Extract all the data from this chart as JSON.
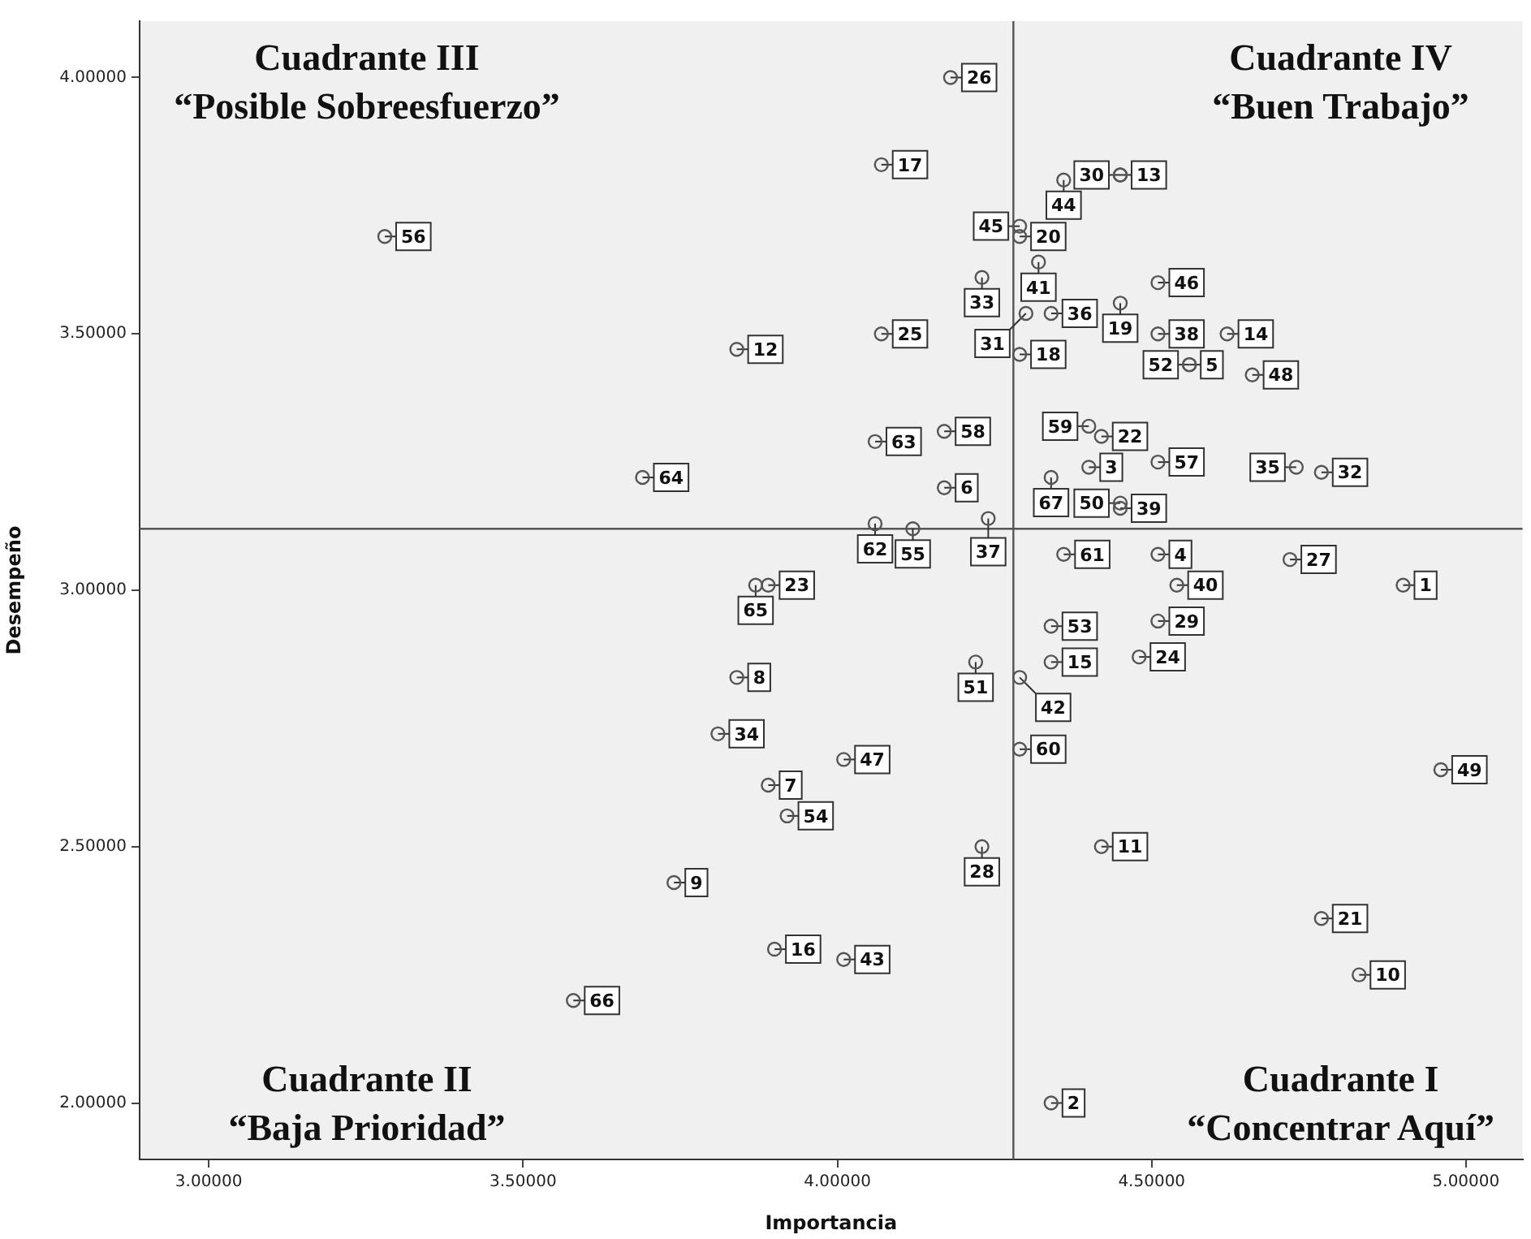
{
  "chart_data": {
    "type": "scatter",
    "xlabel": "Importancia",
    "ylabel": "Desempeño",
    "xlim": [
      2.89,
      5.09
    ],
    "ylim": [
      1.89,
      4.11
    ],
    "xticks": [
      {
        "value": 3,
        "label": "3.00000"
      },
      {
        "value": 3.5,
        "label": "3.50000"
      },
      {
        "value": 4,
        "label": "4.00000"
      },
      {
        "value": 4.5,
        "label": "4.50000"
      },
      {
        "value": 5,
        "label": "5.00000"
      }
    ],
    "yticks": [
      {
        "value": 2,
        "label": "2.00000"
      },
      {
        "value": 2.5,
        "label": "2.50000"
      },
      {
        "value": 3,
        "label": "3.00000"
      },
      {
        "value": 3.5,
        "label": "3.50000"
      },
      {
        "value": 4,
        "label": "4.00000"
      }
    ],
    "grid": false,
    "legend": false,
    "marker": "circle",
    "series": [
      {
        "color": "#555555",
        "x": [
          4.9,
          4.34,
          4.4,
          4.51,
          4.56,
          4.17,
          3.89,
          3.84,
          3.74,
          4.83,
          4.42,
          3.84,
          4.45,
          4.62,
          4.34,
          3.9,
          4.07,
          4.29,
          4.45,
          4.29,
          4.77,
          4.42,
          3.89,
          4.48,
          4.07,
          4.18,
          4.72,
          4.23,
          4.51,
          4.45,
          4.3,
          4.77,
          4.23,
          3.81,
          4.73,
          4.34,
          4.24,
          4.51,
          4.45,
          4.54,
          4.32,
          4.29,
          4.01,
          4.36,
          4.29,
          4.51,
          4.01,
          4.66,
          4.96,
          4.45,
          4.22,
          4.56,
          4.34,
          3.92,
          4.12,
          3.28,
          4.51,
          4.17,
          4.4,
          4.29,
          4.36,
          4.06,
          4.06,
          3.69,
          3.87,
          3.58,
          4.34
        ],
        "values": [
          3.01,
          2.0,
          3.24,
          3.07,
          3.44,
          3.2,
          2.62,
          2.83,
          2.43,
          2.25,
          2.5,
          3.47,
          3.81,
          3.5,
          2.86,
          2.3,
          3.83,
          3.46,
          3.56,
          3.69,
          2.36,
          3.3,
          3.01,
          2.87,
          3.5,
          4.0,
          3.06,
          2.5,
          2.94,
          3.81,
          3.54,
          3.23,
          3.61,
          2.72,
          3.24,
          3.54,
          3.14,
          3.5,
          3.16,
          3.01,
          3.64,
          2.83,
          2.28,
          3.8,
          3.71,
          3.6,
          2.67,
          3.42,
          2.65,
          3.17,
          2.86,
          3.44,
          2.93,
          2.56,
          3.12,
          3.69,
          3.25,
          3.31,
          3.32,
          2.69,
          3.07,
          3.13,
          3.29,
          3.22,
          3.01,
          2.2,
          3.22
        ]
      }
    ],
    "ref_lines": [
      {
        "axis": "x",
        "value": 4.28,
        "color": "#555555"
      },
      {
        "axis": "y",
        "value": 3.12,
        "color": "#555555"
      }
    ],
    "annotations": [
      "Cuadrante III\n“Posible Sobreesfuerzo”",
      "Cuadrante IV\n“Buen Trabajo”",
      "Cuadrante II\n“Baja Prioridad”",
      "Cuadrante I\n“Concentrar Aquí”",
      {
        "text": "1",
        "x": 4.9,
        "y": 3.01
      },
      {
        "text": "2",
        "x": 4.34,
        "y": 2.0
      },
      {
        "text": "3",
        "x": 4.4,
        "y": 3.24
      },
      {
        "text": "4",
        "x": 4.51,
        "y": 3.07
      },
      {
        "text": "5",
        "x": 4.56,
        "y": 3.44
      },
      {
        "text": "6",
        "x": 4.17,
        "y": 3.2
      },
      {
        "text": "7",
        "x": 3.89,
        "y": 2.62
      },
      {
        "text": "8",
        "x": 3.84,
        "y": 2.83
      },
      {
        "text": "9",
        "x": 3.74,
        "y": 2.43
      },
      {
        "text": "10",
        "x": 4.83,
        "y": 2.25
      },
      {
        "text": "11",
        "x": 4.42,
        "y": 2.5
      },
      {
        "text": "12",
        "x": 3.84,
        "y": 3.47
      },
      {
        "text": "13",
        "x": 4.45,
        "y": 3.81
      },
      {
        "text": "14",
        "x": 4.62,
        "y": 3.5
      },
      {
        "text": "15",
        "x": 4.34,
        "y": 2.86
      },
      {
        "text": "16",
        "x": 3.9,
        "y": 2.3
      },
      {
        "text": "17",
        "x": 4.07,
        "y": 3.83
      },
      {
        "text": "18",
        "x": 4.29,
        "y": 3.46
      },
      {
        "text": "19",
        "x": 4.45,
        "y": 3.56
      },
      {
        "text": "20",
        "x": 4.29,
        "y": 3.69
      },
      {
        "text": "21",
        "x": 4.77,
        "y": 2.36
      },
      {
        "text": "22",
        "x": 4.42,
        "y": 3.3
      },
      {
        "text": "23",
        "x": 3.89,
        "y": 3.01
      },
      {
        "text": "24",
        "x": 4.48,
        "y": 2.87
      },
      {
        "text": "25",
        "x": 4.07,
        "y": 3.5
      },
      {
        "text": "26",
        "x": 4.18,
        "y": 4.0
      },
      {
        "text": "27",
        "x": 4.72,
        "y": 3.06
      },
      {
        "text": "28",
        "x": 4.23,
        "y": 2.5
      },
      {
        "text": "29",
        "x": 4.51,
        "y": 2.94
      },
      {
        "text": "30",
        "x": 4.45,
        "y": 3.81
      },
      {
        "text": "31",
        "x": 4.3,
        "y": 3.54
      },
      {
        "text": "32",
        "x": 4.77,
        "y": 3.23
      },
      {
        "text": "33",
        "x": 4.23,
        "y": 3.61
      },
      {
        "text": "34",
        "x": 3.81,
        "y": 2.72
      },
      {
        "text": "35",
        "x": 4.73,
        "y": 3.24
      },
      {
        "text": "36",
        "x": 4.34,
        "y": 3.54
      },
      {
        "text": "37",
        "x": 4.24,
        "y": 3.14
      },
      {
        "text": "38",
        "x": 4.51,
        "y": 3.5
      },
      {
        "text": "39",
        "x": 4.45,
        "y": 3.16
      },
      {
        "text": "40",
        "x": 4.54,
        "y": 3.01
      },
      {
        "text": "41",
        "x": 4.32,
        "y": 3.64
      },
      {
        "text": "42",
        "x": 4.29,
        "y": 2.83
      },
      {
        "text": "43",
        "x": 4.01,
        "y": 2.28
      },
      {
        "text": "44",
        "x": 4.36,
        "y": 3.8
      },
      {
        "text": "45",
        "x": 4.29,
        "y": 3.71
      },
      {
        "text": "46",
        "x": 4.51,
        "y": 3.6
      },
      {
        "text": "47",
        "x": 4.01,
        "y": 2.67
      },
      {
        "text": "48",
        "x": 4.66,
        "y": 3.42
      },
      {
        "text": "49",
        "x": 4.96,
        "y": 2.65
      },
      {
        "text": "50",
        "x": 4.45,
        "y": 3.17
      },
      {
        "text": "51",
        "x": 4.22,
        "y": 2.86
      },
      {
        "text": "52",
        "x": 4.56,
        "y": 3.44
      },
      {
        "text": "53",
        "x": 4.34,
        "y": 2.93
      },
      {
        "text": "54",
        "x": 3.92,
        "y": 2.56
      },
      {
        "text": "55",
        "x": 4.12,
        "y": 3.12
      },
      {
        "text": "56",
        "x": 3.28,
        "y": 3.69
      },
      {
        "text": "57",
        "x": 4.51,
        "y": 3.25
      },
      {
        "text": "58",
        "x": 4.17,
        "y": 3.31
      },
      {
        "text": "59",
        "x": 4.4,
        "y": 3.32
      },
      {
        "text": "60",
        "x": 4.29,
        "y": 2.69
      },
      {
        "text": "61",
        "x": 4.36,
        "y": 3.07
      },
      {
        "text": "62",
        "x": 4.06,
        "y": 3.13
      },
      {
        "text": "63",
        "x": 4.06,
        "y": 3.29
      },
      {
        "text": "64",
        "x": 3.69,
        "y": 3.22
      },
      {
        "text": "65",
        "x": 3.87,
        "y": 3.01
      },
      {
        "text": "66",
        "x": 3.58,
        "y": 2.2
      },
      {
        "text": "67",
        "x": 4.34,
        "y": 3.22
      }
    ]
  }
}
